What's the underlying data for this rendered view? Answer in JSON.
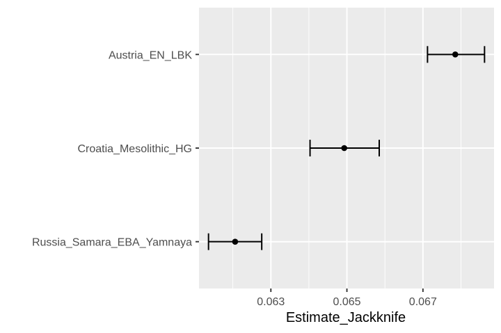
{
  "chart_data": {
    "type": "scatter",
    "subtype": "point-with-errorbars",
    "orientation": "horizontal",
    "title": "",
    "xlabel": "Estimate_Jackknife",
    "ylabel": "",
    "categories": [
      "Austria_EN_LBK",
      "Croatia_Mesolithic_HG",
      "Russia_Samara_EBA_Yamnaya"
    ],
    "points": [
      {
        "label": "Austria_EN_LBK",
        "estimate": 0.06785,
        "lower": 0.06712,
        "upper": 0.06862
      },
      {
        "label": "Croatia_Mesolithic_HG",
        "estimate": 0.06493,
        "lower": 0.06403,
        "upper": 0.06585
      },
      {
        "label": "Russia_Samara_EBA_Yamnaya",
        "estimate": 0.06206,
        "lower": 0.06136,
        "upper": 0.06276
      }
    ],
    "x_ticks": [
      0.063,
      0.065,
      0.067
    ],
    "x_tick_labels": [
      "0.063",
      "0.065",
      "0.067"
    ],
    "xlim": [
      0.06111,
      0.06887
    ],
    "grid": true,
    "panel_background": "#ebebeb",
    "grid_color": "#ffffff",
    "point_color": "#000000"
  }
}
